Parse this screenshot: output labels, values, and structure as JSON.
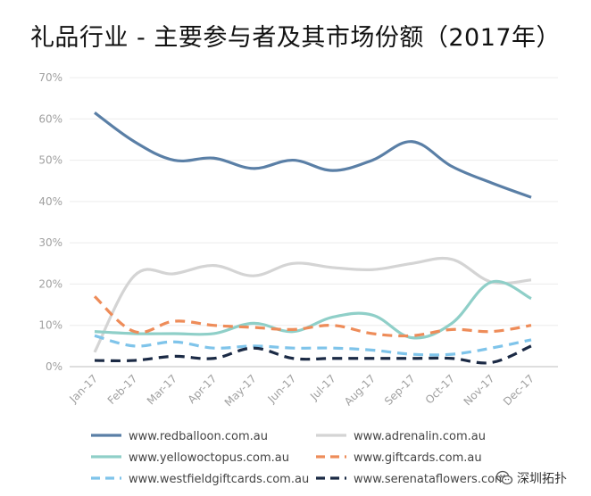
{
  "title": "礼品行业 - 主要参与者及其市场份额（2017年）",
  "watermark": {
    "text": "深圳拓扑",
    "icon": "wechat-icon"
  },
  "chart_data": {
    "type": "line",
    "title": "礼品行业 - 主要参与者及其市场份额（2017年）",
    "xlabel": "",
    "ylabel": "",
    "categories": [
      "Jan-17",
      "Feb-17",
      "Mar-17",
      "Apr-17",
      "May-17",
      "Jun-17",
      "Jul-17",
      "Aug-17",
      "Sep-17",
      "Oct-17",
      "Nov-17",
      "Dec-17"
    ],
    "ylim": [
      0,
      70
    ],
    "yticks": [
      "0%",
      "10%",
      "20%",
      "30%",
      "40%",
      "50%",
      "60%",
      "70%"
    ],
    "grid": true,
    "legend_position": "bottom",
    "series": [
      {
        "name": "www.redballoon.com.au",
        "color": "#5a7fa6",
        "dash": "solid",
        "values": [
          61.5,
          54.5,
          50,
          50.5,
          48,
          50,
          47.5,
          50,
          54.5,
          48.5,
          44.5,
          41
        ]
      },
      {
        "name": "www.adrenalin.com.au",
        "color": "#d4d4d4",
        "dash": "solid",
        "values": [
          3.5,
          22,
          22.5,
          24.5,
          22,
          25,
          24,
          23.5,
          25,
          26,
          20.5,
          21
        ]
      },
      {
        "name": "www.yellowoctopus.com.au",
        "color": "#8fcfc8",
        "dash": "solid",
        "values": [
          8.5,
          8,
          8,
          8,
          10.5,
          8.5,
          12,
          12.5,
          7,
          10.5,
          20.5,
          16.5
        ]
      },
      {
        "name": "www.giftcards.com.au",
        "color": "#ee8c59",
        "dash": "dashed",
        "values": [
          17,
          8.5,
          11,
          10,
          9.5,
          9,
          10,
          8,
          7.5,
          9,
          8.5,
          10
        ]
      },
      {
        "name": "www.westfieldgiftcards.com.au",
        "color": "#7fc4ea",
        "dash": "dashed",
        "values": [
          7.5,
          5,
          6,
          4.5,
          5,
          4.5,
          4.5,
          4,
          3,
          3,
          4.5,
          6.5
        ]
      },
      {
        "name": "www.serenataflowers.com",
        "color": "#1b2a45",
        "dash": "dashed",
        "values": [
          1.5,
          1.5,
          2.5,
          2,
          4.5,
          2,
          2,
          2,
          2,
          2,
          1,
          5
        ]
      }
    ]
  }
}
